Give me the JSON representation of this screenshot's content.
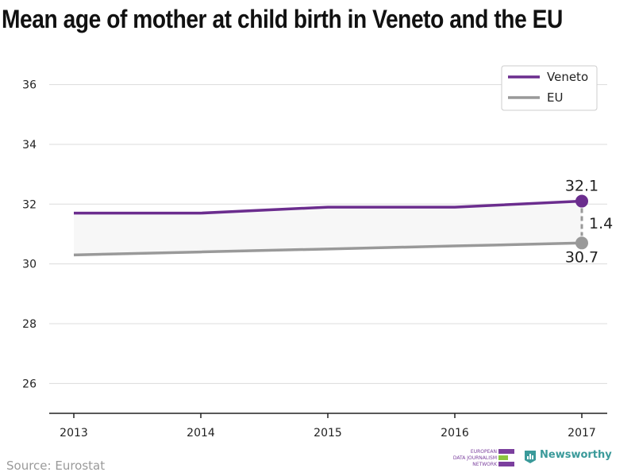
{
  "chart_data": {
    "type": "line",
    "title": "Mean age of mother at child birth in Veneto and the EU",
    "x": [
      "2013",
      "2014",
      "2015",
      "2016",
      "2017"
    ],
    "series": [
      {
        "name": "Veneto",
        "values": [
          31.7,
          31.7,
          31.9,
          31.9,
          32.1
        ],
        "color": "#6b2d8e"
      },
      {
        "name": "EU",
        "values": [
          30.3,
          30.4,
          30.5,
          30.6,
          30.7
        ],
        "color": "#999999"
      }
    ],
    "yticks": [
      26,
      28,
      30,
      32,
      34,
      36
    ],
    "ylim": [
      25,
      37
    ],
    "grid": true,
    "legend_position": "top-right",
    "end_labels": {
      "top": "32.1",
      "bottom": "30.7",
      "difference": "1.4"
    },
    "fill_between_color": "#f7f7f7"
  },
  "source": "Source: Eurostat",
  "logos": {
    "edjnet": {
      "lines": [
        "EUROPEAN",
        "DATA JOURNALISM",
        "NETWORK"
      ],
      "colors": [
        "#7b3f9e",
        "#8cc63f",
        "#7b3f9e"
      ]
    },
    "newsworthy": {
      "label": "Newsworthy",
      "color": "#3a9a9a",
      "icon": "bar-chart-icon"
    }
  }
}
